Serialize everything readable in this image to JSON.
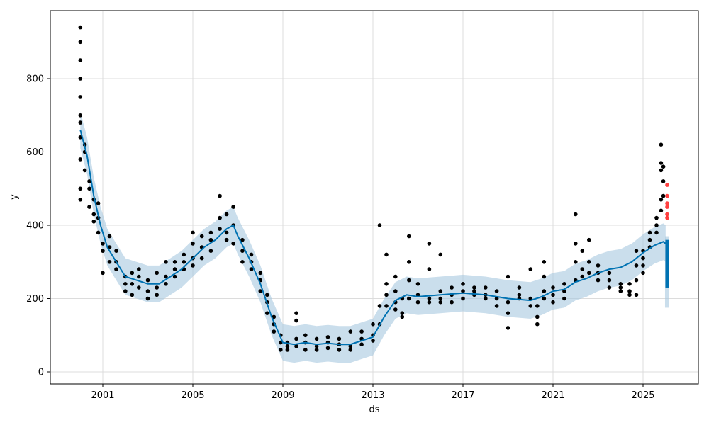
{
  "chart_data": {
    "type": "scatter",
    "title": "",
    "xlabel": "ds",
    "ylabel": "y",
    "xlim": [
      1998.8,
      2027.6
    ],
    "ylim": [
      -30,
      980
    ],
    "x_ticks": [
      "2001",
      "2005",
      "2009",
      "2013",
      "2017",
      "2021",
      "2025"
    ],
    "y_ticks": [
      "0",
      "200",
      "400",
      "600",
      "800"
    ],
    "grid": true,
    "colors": {
      "observed": "#000000",
      "forecast": "#0072B2",
      "band": "#A6C8E0",
      "test": "#FF0000"
    },
    "observed": [
      [
        2000.0,
        [
          580,
          470,
          500,
          640,
          700,
          800,
          900,
          940,
          850,
          750,
          680
        ]
      ],
      [
        2000.2,
        [
          620,
          550,
          600
        ]
      ],
      [
        2000.4,
        [
          500,
          450,
          520
        ]
      ],
      [
        2000.6,
        [
          430,
          470,
          410
        ]
      ],
      [
        2000.8,
        [
          420,
          460,
          380
        ]
      ],
      [
        2001.0,
        [
          350,
          330,
          270
        ]
      ],
      [
        2001.3,
        [
          340,
          370,
          300
        ]
      ],
      [
        2001.6,
        [
          300,
          280,
          330
        ]
      ],
      [
        2002.0,
        [
          240,
          220,
          260
        ]
      ],
      [
        2002.3,
        [
          270,
          240,
          210
        ]
      ],
      [
        2002.6,
        [
          260,
          280,
          230
        ]
      ],
      [
        2003.0,
        [
          220,
          200,
          250
        ]
      ],
      [
        2003.4,
        [
          230,
          210,
          270
        ]
      ],
      [
        2003.8,
        [
          260,
          300,
          240
        ]
      ],
      [
        2004.2,
        [
          280,
          300,
          260
        ]
      ],
      [
        2004.6,
        [
          300,
          320,
          280
        ]
      ],
      [
        2005.0,
        [
          310,
          350,
          290,
          380
        ]
      ],
      [
        2005.4,
        [
          340,
          370,
          310
        ]
      ],
      [
        2005.8,
        [
          360,
          380,
          330
        ]
      ],
      [
        2006.2,
        [
          420,
          480,
          390
        ]
      ],
      [
        2006.5,
        [
          380,
          360,
          430
        ]
      ],
      [
        2006.8,
        [
          400,
          450,
          350
        ]
      ],
      [
        2007.2,
        [
          330,
          360,
          300
        ]
      ],
      [
        2007.6,
        [
          300,
          320,
          280
        ]
      ],
      [
        2008.0,
        [
          250,
          270,
          220
        ]
      ],
      [
        2008.3,
        [
          190,
          160,
          210
        ]
      ],
      [
        2008.6,
        [
          130,
          110,
          150
        ]
      ],
      [
        2008.9,
        [
          80,
          60,
          100
        ]
      ],
      [
        2009.2,
        [
          70,
          60,
          80
        ]
      ],
      [
        2009.6,
        [
          90,
          140,
          70,
          160
        ]
      ],
      [
        2010.0,
        [
          80,
          60,
          100
        ]
      ],
      [
        2010.5,
        [
          70,
          60,
          90
        ]
      ],
      [
        2011.0,
        [
          80,
          65,
          95
        ]
      ],
      [
        2011.5,
        [
          75,
          60,
          90
        ]
      ],
      [
        2012.0,
        [
          70,
          60,
          110
        ]
      ],
      [
        2012.5,
        [
          90,
          75,
          110
        ]
      ],
      [
        2013.0,
        [
          100,
          85,
          130
        ]
      ],
      [
        2013.3,
        [
          130,
          180,
          400
        ]
      ],
      [
        2013.6,
        [
          210,
          240,
          180,
          320
        ]
      ],
      [
        2014.0,
        [
          190,
          220,
          170,
          260
        ]
      ],
      [
        2014.3,
        [
          160,
          200,
          150
        ]
      ],
      [
        2014.6,
        [
          250,
          300,
          370,
          200
        ]
      ],
      [
        2015.0,
        [
          210,
          190,
          240
        ]
      ],
      [
        2015.5,
        [
          200,
          190,
          280,
          350
        ]
      ],
      [
        2016.0,
        [
          200,
          220,
          190,
          320
        ]
      ],
      [
        2016.5,
        [
          230,
          210,
          190
        ]
      ],
      [
        2017.0,
        [
          220,
          200,
          240
        ]
      ],
      [
        2017.5,
        [
          220,
          210,
          230
        ]
      ],
      [
        2018.0,
        [
          210,
          200,
          230
        ]
      ],
      [
        2018.5,
        [
          200,
          180,
          220
        ]
      ],
      [
        2019.0,
        [
          190,
          120,
          160,
          260
        ]
      ],
      [
        2019.5,
        [
          210,
          200,
          230
        ]
      ],
      [
        2020.0,
        [
          200,
          180,
          280
        ]
      ],
      [
        2020.3,
        [
          150,
          130,
          180
        ]
      ],
      [
        2020.6,
        [
          200,
          220,
          300,
          260
        ]
      ],
      [
        2021.0,
        [
          210,
          190,
          230
        ]
      ],
      [
        2021.5,
        [
          220,
          200,
          240
        ]
      ],
      [
        2022.0,
        [
          250,
          300,
          430,
          350
        ]
      ],
      [
        2022.3,
        [
          280,
          260,
          330
        ]
      ],
      [
        2022.6,
        [
          300,
          270,
          360
        ]
      ],
      [
        2023.0,
        [
          270,
          250,
          290
        ]
      ],
      [
        2023.5,
        [
          250,
          230,
          270
        ]
      ],
      [
        2024.0,
        [
          230,
          220,
          240
        ]
      ],
      [
        2024.4,
        [
          210,
          220,
          240
        ]
      ],
      [
        2024.7,
        [
          290,
          250,
          330,
          210
        ]
      ],
      [
        2025.0,
        [
          310,
          330,
          290,
          270
        ]
      ],
      [
        2025.3,
        [
          360,
          340,
          380
        ]
      ],
      [
        2025.6,
        [
          400,
          380,
          420
        ]
      ],
      [
        2025.8,
        [
          440,
          470,
          550,
          570,
          620
        ]
      ],
      [
        2025.9,
        [
          480,
          520,
          560
        ]
      ]
    ],
    "forecast": [
      [
        2000.0,
        660,
        610,
        710
      ],
      [
        2000.3,
        590,
        540,
        640
      ],
      [
        2000.6,
        480,
        430,
        530
      ],
      [
        2000.9,
        400,
        350,
        450
      ],
      [
        2001.2,
        340,
        290,
        390
      ],
      [
        2001.6,
        300,
        250,
        350
      ],
      [
        2002.0,
        260,
        210,
        310
      ],
      [
        2002.5,
        250,
        200,
        300
      ],
      [
        2003.0,
        240,
        190,
        290
      ],
      [
        2003.5,
        240,
        190,
        290
      ],
      [
        2004.0,
        260,
        210,
        310
      ],
      [
        2004.5,
        280,
        230,
        330
      ],
      [
        2005.0,
        310,
        260,
        360
      ],
      [
        2005.5,
        340,
        290,
        390
      ],
      [
        2006.0,
        360,
        310,
        410
      ],
      [
        2006.5,
        390,
        340,
        440
      ],
      [
        2006.8,
        400,
        350,
        450
      ],
      [
        2007.0,
        370,
        320,
        420
      ],
      [
        2007.5,
        310,
        260,
        360
      ],
      [
        2008.0,
        240,
        190,
        290
      ],
      [
        2008.5,
        150,
        100,
        200
      ],
      [
        2009.0,
        80,
        30,
        130
      ],
      [
        2009.5,
        75,
        25,
        125
      ],
      [
        2010.0,
        80,
        30,
        130
      ],
      [
        2010.5,
        75,
        25,
        125
      ],
      [
        2011.0,
        78,
        28,
        128
      ],
      [
        2011.5,
        75,
        25,
        125
      ],
      [
        2012.0,
        75,
        25,
        125
      ],
      [
        2012.5,
        85,
        35,
        135
      ],
      [
        2013.0,
        95,
        45,
        145
      ],
      [
        2013.5,
        150,
        100,
        200
      ],
      [
        2014.0,
        195,
        145,
        245
      ],
      [
        2014.5,
        210,
        160,
        260
      ],
      [
        2015.0,
        205,
        155,
        255
      ],
      [
        2016.0,
        210,
        160,
        260
      ],
      [
        2017.0,
        215,
        165,
        265
      ],
      [
        2018.0,
        210,
        160,
        260
      ],
      [
        2019.0,
        200,
        150,
        250
      ],
      [
        2020.0,
        195,
        145,
        245
      ],
      [
        2020.5,
        205,
        155,
        255
      ],
      [
        2021.0,
        220,
        170,
        270
      ],
      [
        2021.5,
        225,
        175,
        275
      ],
      [
        2022.0,
        245,
        195,
        295
      ],
      [
        2022.5,
        255,
        205,
        305
      ],
      [
        2023.0,
        270,
        220,
        320
      ],
      [
        2023.5,
        280,
        230,
        330
      ],
      [
        2024.0,
        285,
        235,
        335
      ],
      [
        2024.5,
        300,
        250,
        350
      ],
      [
        2025.0,
        325,
        275,
        375
      ],
      [
        2025.5,
        345,
        295,
        395
      ],
      [
        2025.9,
        355,
        305,
        405
      ],
      [
        2026.0,
        350,
        300,
        400
      ]
    ],
    "forecast_future": {
      "x": 2026.07,
      "yhat_range": [
        230,
        360
      ],
      "band_range": [
        175,
        370
      ]
    },
    "test_observed": {
      "x": 2026.07,
      "values": [
        420,
        430,
        450,
        460,
        480,
        510
      ]
    }
  }
}
